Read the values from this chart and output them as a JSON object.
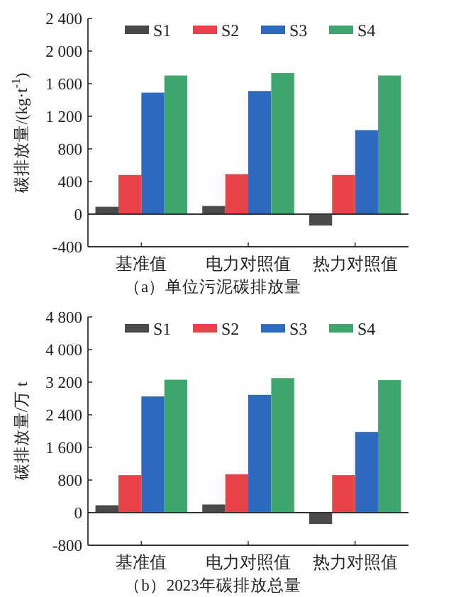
{
  "chart_data": [
    {
      "type": "bar",
      "title": "（a）单位污泥碳排放量",
      "ylabel": "碳排放量/(kg·t$^{-1}$)",
      "categories": [
        "基准值",
        "电力对照值",
        "热力对照值"
      ],
      "series": [
        {
          "name": "S1",
          "color": "#4a4a4a",
          "values": [
            90,
            100,
            -140
          ]
        },
        {
          "name": "S2",
          "color": "#e8434b",
          "values": [
            480,
            490,
            480
          ]
        },
        {
          "name": "S3",
          "color": "#2e6bbf",
          "values": [
            1490,
            1510,
            1030
          ]
        },
        {
          "name": "S4",
          "color": "#3fa66d",
          "values": [
            1700,
            1730,
            1700
          ]
        }
      ],
      "ylim": [
        -400,
        2400
      ],
      "yticks": [
        {
          "value": -400,
          "label": "-400"
        },
        0,
        400,
        800,
        {
          "value": 1200,
          "label": "1 200"
        },
        {
          "value": 1600,
          "label": "1 600"
        },
        {
          "value": 2000,
          "label": "2 000"
        },
        {
          "value": 2400,
          "label": "2 400"
        }
      ],
      "legend": "top"
    },
    {
      "type": "bar",
      "title": "（b）2023年碳排放总量",
      "ylabel": "碳排放量/万 t",
      "categories": [
        "基准值",
        "电力对照值",
        "热力对照值"
      ],
      "series": [
        {
          "name": "S1",
          "color": "#4a4a4a",
          "values": [
            180,
            200,
            -280
          ]
        },
        {
          "name": "S2",
          "color": "#e8434b",
          "values": [
            920,
            940,
            920
          ]
        },
        {
          "name": "S3",
          "color": "#2e6bbf",
          "values": [
            2850,
            2890,
            1980
          ]
        },
        {
          "name": "S4",
          "color": "#3fa66d",
          "values": [
            3260,
            3300,
            3250
          ]
        }
      ],
      "ylim": [
        -800,
        4800
      ],
      "yticks": [
        {
          "value": -800,
          "label": "-800"
        },
        0,
        800,
        {
          "value": 1600,
          "label": "1 600"
        },
        {
          "value": 2400,
          "label": "2 400"
        },
        {
          "value": 3200,
          "label": "3 200"
        },
        {
          "value": 4000,
          "label": "4 000"
        },
        {
          "value": 4800,
          "label": "4 800"
        }
      ],
      "legend": "top"
    }
  ]
}
